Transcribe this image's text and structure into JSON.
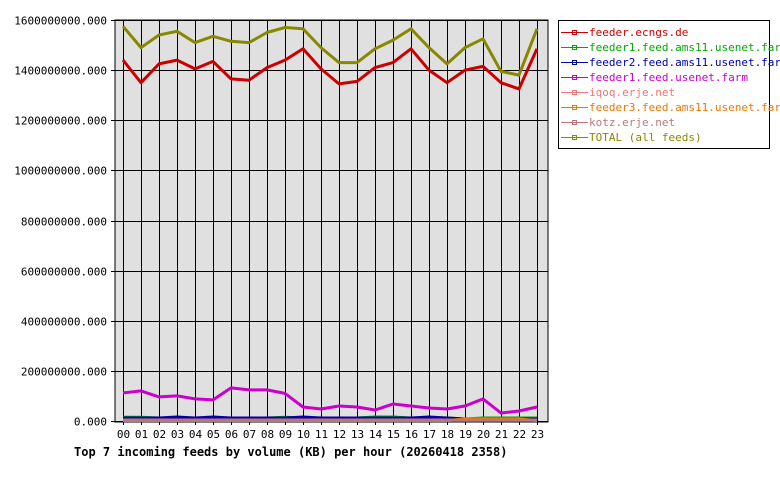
{
  "chart_data": {
    "type": "line",
    "title": "Top 7 incoming feeds by volume (KB) per hour (20260418 2358)",
    "xlabel": "",
    "ylabel": "",
    "ylim": [
      0,
      1600000000
    ],
    "grid": true,
    "legend_position": "right",
    "y_ticks": [
      "0.000",
      "200000000.000",
      "400000000.000",
      "600000000.000",
      "800000000.000",
      "1000000000.000",
      "1200000000.000",
      "1400000000.000",
      "1600000000.000"
    ],
    "categories": [
      "00",
      "01",
      "02",
      "03",
      "04",
      "05",
      "06",
      "07",
      "08",
      "09",
      "10",
      "11",
      "12",
      "13",
      "14",
      "15",
      "16",
      "17",
      "18",
      "19",
      "20",
      "21",
      "22",
      "23"
    ],
    "series": [
      {
        "name": "feeder.ecngs.de",
        "color": "#cc0000",
        "values": [
          1440000000,
          1350000000,
          1425000000,
          1440000000,
          1405000000,
          1435000000,
          1365000000,
          1360000000,
          1410000000,
          1440000000,
          1485000000,
          1405000000,
          1345000000,
          1355000000,
          1410000000,
          1430000000,
          1485000000,
          1400000000,
          1350000000,
          1400000000,
          1415000000,
          1350000000,
          1325000000,
          1485000000
        ]
      },
      {
        "name": "feeder1.feed.ams11.usenet.farm",
        "color": "#00aa00",
        "values": [
          15000000,
          15000000,
          12000000,
          12000000,
          12000000,
          12000000,
          12000000,
          12000000,
          12000000,
          15000000,
          12000000,
          12000000,
          12000000,
          12000000,
          16000000,
          16000000,
          12000000,
          12000000,
          12000000,
          8000000,
          12000000,
          12000000,
          12000000,
          12000000
        ]
      },
      {
        "name": "feeder2.feed.ams11.usenet.farm",
        "color": "#0000aa",
        "values": [
          12000000,
          12000000,
          12000000,
          16000000,
          12000000,
          16000000,
          12000000,
          12000000,
          12000000,
          12000000,
          16000000,
          12000000,
          12000000,
          12000000,
          12000000,
          12000000,
          12000000,
          16000000,
          12000000,
          8000000,
          8000000,
          8000000,
          8000000,
          8000000
        ]
      },
      {
        "name": "feeder1.feed.usenet.farm",
        "color": "#cc00cc",
        "values": [
          112000000,
          120000000,
          96000000,
          100000000,
          88000000,
          84000000,
          132000000,
          124000000,
          124000000,
          110000000,
          56000000,
          48000000,
          60000000,
          56000000,
          44000000,
          68000000,
          60000000,
          52000000,
          48000000,
          60000000,
          88000000,
          32000000,
          40000000,
          56000000
        ]
      },
      {
        "name": "iqoq.erje.net",
        "color": "#ee7777",
        "values": [
          4000000,
          4000000,
          4000000,
          4000000,
          4000000,
          4000000,
          4000000,
          4000000,
          4000000,
          4000000,
          4000000,
          4000000,
          4000000,
          4000000,
          4000000,
          4000000,
          4000000,
          4000000,
          4000000,
          4000000,
          4000000,
          4000000,
          4000000,
          4000000
        ]
      },
      {
        "name": "feeder3.feed.ams11.usenet.farm",
        "color": "#ee7700",
        "values": [
          2000000,
          2000000,
          2000000,
          2000000,
          2000000,
          2000000,
          2000000,
          2000000,
          2000000,
          2000000,
          2000000,
          2000000,
          2000000,
          2000000,
          2000000,
          2000000,
          2000000,
          2000000,
          2000000,
          8000000,
          8000000,
          8000000,
          8000000,
          2000000
        ]
      },
      {
        "name": "kotz.erje.net",
        "color": "#bb7777",
        "values": [
          3000000,
          3000000,
          3000000,
          3000000,
          3000000,
          3000000,
          3000000,
          3000000,
          3000000,
          3000000,
          3000000,
          3000000,
          3000000,
          3000000,
          3000000,
          3000000,
          3000000,
          3000000,
          3000000,
          3000000,
          3000000,
          3000000,
          3000000,
          3000000
        ]
      },
      {
        "name": "TOTAL (all feeds)",
        "color": "#888800",
        "values": [
          1575000000,
          1490000000,
          1540000000,
          1555000000,
          1510000000,
          1535000000,
          1515000000,
          1510000000,
          1550000000,
          1570000000,
          1565000000,
          1490000000,
          1430000000,
          1430000000,
          1485000000,
          1520000000,
          1565000000,
          1490000000,
          1425000000,
          1490000000,
          1525000000,
          1395000000,
          1380000000,
          1565000000
        ]
      }
    ]
  }
}
